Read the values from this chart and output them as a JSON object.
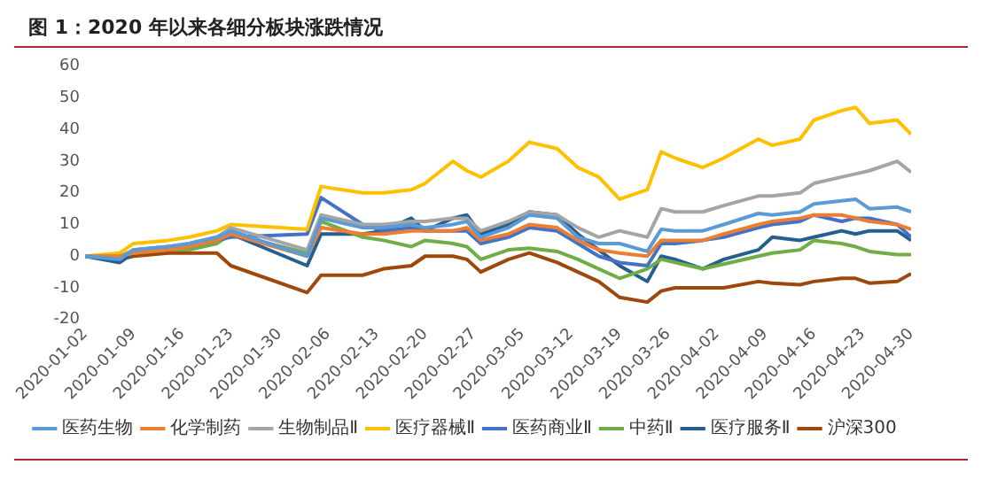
{
  "chart_data": {
    "type": "line",
    "title": "图 1：2020 年以来各细分板块涨跌情况",
    "x": [
      "2020-01-02",
      "2020-01-07",
      "2020-01-09",
      "2020-01-14",
      "2020-01-17",
      "2020-01-21",
      "2020-01-23",
      "2020-02-03",
      "2020-02-05",
      "2020-02-11",
      "2020-02-14",
      "2020-02-18",
      "2020-02-20",
      "2020-02-24",
      "2020-02-26",
      "2020-02-28",
      "2020-03-03",
      "2020-03-06",
      "2020-03-10",
      "2020-03-13",
      "2020-03-16",
      "2020-03-19",
      "2020-03-23",
      "2020-03-25",
      "2020-03-27",
      "2020-03-31",
      "2020-04-03",
      "2020-04-08",
      "2020-04-10",
      "2020-04-14",
      "2020-04-16",
      "2020-04-20",
      "2020-04-22",
      "2020-04-24",
      "2020-04-28",
      "2020-04-30"
    ],
    "series": [
      {
        "name": "医药生物",
        "color": "#5b9bd5",
        "values": [
          0,
          -1,
          2,
          3,
          4,
          6,
          8,
          0,
          12,
          9,
          9,
          10,
          9,
          10,
          11,
          6,
          9,
          13,
          12,
          6,
          4,
          4,
          1.5,
          8.5,
          8,
          8,
          10,
          13.5,
          13,
          14,
          16.5,
          17.5,
          18,
          15,
          15.5,
          14
        ]
      },
      {
        "name": "化学制药",
        "color": "#ed7d31",
        "values": [
          0,
          0,
          1,
          2,
          3,
          5,
          7,
          0,
          9,
          7,
          7,
          8,
          8,
          8,
          9,
          5,
          7,
          10,
          9,
          5,
          2,
          1,
          0,
          5,
          5,
          5,
          7,
          10,
          11,
          12,
          13,
          13,
          12,
          11,
          10,
          8.5
        ]
      },
      {
        "name": "生物制品Ⅱ",
        "color": "#a5a5a5",
        "values": [
          0,
          0,
          2,
          3,
          4,
          6,
          9,
          2,
          13,
          10,
          10,
          11,
          11,
          12,
          12,
          8,
          11,
          14,
          13,
          9,
          6,
          8,
          6,
          15,
          14,
          14,
          16,
          19,
          19,
          20,
          23,
          25,
          26,
          27,
          30,
          26.5
        ]
      },
      {
        "name": "医疗器械Ⅱ",
        "color": "#ffc000",
        "values": [
          0,
          1,
          4,
          5,
          6,
          8,
          10,
          8.5,
          22,
          20,
          20,
          21,
          23,
          30,
          27,
          25,
          30,
          36,
          34,
          28,
          25,
          18,
          21,
          33,
          31,
          28,
          31,
          37,
          35,
          37,
          43,
          46,
          47,
          42,
          43,
          38.5
        ]
      },
      {
        "name": "医药商业Ⅱ",
        "color": "#4472c4",
        "values": [
          0,
          -1,
          2,
          3,
          3,
          5,
          6,
          7,
          18.5,
          10,
          8,
          9,
          8,
          8,
          8,
          4,
          6,
          9,
          8,
          4,
          0,
          -2,
          -3,
          4,
          4,
          5,
          6,
          9,
          10,
          11,
          13,
          11,
          12,
          12,
          10,
          6
        ]
      },
      {
        "name": "中药Ⅱ",
        "color": "#70ad47",
        "values": [
          null,
          null,
          1,
          2,
          2,
          4,
          7,
          1,
          11,
          6,
          5,
          3,
          5,
          4,
          3,
          -1,
          2,
          2.5,
          1.5,
          -1,
          -4,
          -7,
          -4,
          -1,
          -2,
          -4,
          -2.5,
          0,
          1,
          2,
          5,
          4,
          3,
          1.5,
          0.5,
          0.5
        ]
      },
      {
        "name": "医疗服务Ⅱ",
        "color": "#255e91",
        "values": [
          0,
          -2,
          1,
          2,
          3,
          5,
          7,
          -3,
          7,
          7,
          8,
          12,
          8,
          12,
          13,
          7,
          10,
          14,
          13,
          7,
          2,
          -3,
          -8,
          0,
          -1,
          -4,
          -1,
          2,
          6,
          5,
          6,
          8,
          7,
          8,
          8,
          5
        ]
      },
      {
        "name": "沪深300",
        "color": "#9e480e",
        "values": [
          0,
          -1,
          0,
          1,
          1,
          1,
          -3,
          -11.5,
          -6,
          -6,
          -4,
          -3,
          0,
          0,
          -1,
          -5,
          -1,
          1,
          -2,
          -5,
          -8,
          -13,
          -14.5,
          -11,
          -10,
          -10,
          -10,
          -8,
          -8.5,
          -9,
          -8,
          -7,
          -7,
          -8.5,
          -8,
          -5.5
        ]
      }
    ],
    "xlim": [
      "2020-01-02",
      "2020-04-30"
    ],
    "xticks": [
      "2020-01-02",
      "2020-01-09",
      "2020-01-16",
      "2020-01-23",
      "2020-01-30",
      "2020-02-06",
      "2020-02-13",
      "2020-02-20",
      "2020-02-27",
      "2020-03-05",
      "2020-03-12",
      "2020-03-19",
      "2020-03-26",
      "2020-04-02",
      "2020-04-09",
      "2020-04-16",
      "2020-04-23",
      "2020-04-30"
    ],
    "ylim": [
      -20,
      60
    ],
    "yticks": [
      -20,
      -10,
      0,
      10,
      20,
      30,
      40,
      50,
      60
    ],
    "grid": false,
    "legend": "bottom",
    "marker": "none",
    "line_style": "solid"
  }
}
